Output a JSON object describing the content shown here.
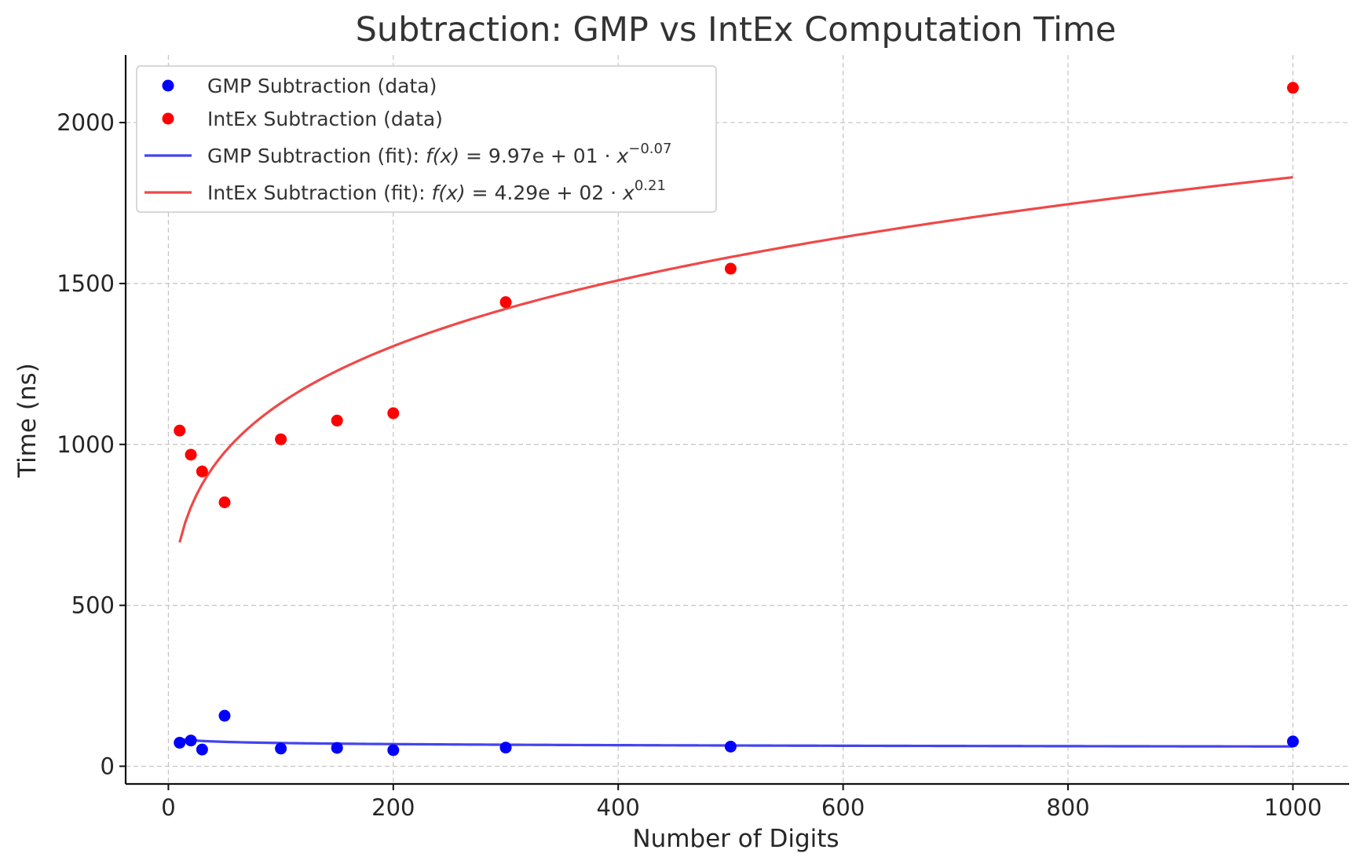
{
  "chart_data": {
    "type": "scatter",
    "title": "Subtraction: GMP vs IntEx Computation Time",
    "xlabel": "Number of Digits",
    "ylabel": "Time (ns)",
    "xlim": [
      -38,
      1050
    ],
    "ylim": [
      -55,
      2210
    ],
    "xticks": [
      0,
      200,
      400,
      600,
      800,
      1000
    ],
    "yticks": [
      0,
      500,
      1000,
      1500,
      2000
    ],
    "grid": true,
    "legend_position": "top-left",
    "series": [
      {
        "name": "GMP Subtraction (data)",
        "kind": "points",
        "color": "#0000ff",
        "x": [
          10,
          20,
          30,
          50,
          100,
          150,
          200,
          300,
          500,
          1000
        ],
        "y": [
          73,
          80,
          52,
          157,
          55,
          57,
          50,
          58,
          61,
          77
        ]
      },
      {
        "name": "IntEx Subtraction (data)",
        "kind": "points",
        "color": "#ff0000",
        "x": [
          10,
          20,
          30,
          50,
          100,
          150,
          200,
          300,
          500,
          1000
        ],
        "y": [
          1043,
          968,
          916,
          820,
          1016,
          1074,
          1097,
          1442,
          1546,
          2108
        ]
      },
      {
        "name": "GMP Subtraction (fit): ",
        "kind": "fit",
        "color": "#4444ee",
        "formula": {
          "lhs": "f(x)",
          "eq": " = ",
          "coef": "9.97e + 01",
          "dot": " · ",
          "base": "x",
          "exp": "−0.07"
        },
        "a": 99.7,
        "b": -0.07,
        "x_range": [
          10,
          1000
        ]
      },
      {
        "name": "IntEx Subtraction (fit): ",
        "kind": "fit",
        "color": "#f04848",
        "formula": {
          "lhs": "f(x)",
          "eq": " = ",
          "coef": "4.29e + 02",
          "dot": " · ",
          "base": "x",
          "exp": "0.21"
        },
        "a": 429,
        "b": 0.21,
        "x_range": [
          10,
          1000
        ]
      }
    ]
  }
}
